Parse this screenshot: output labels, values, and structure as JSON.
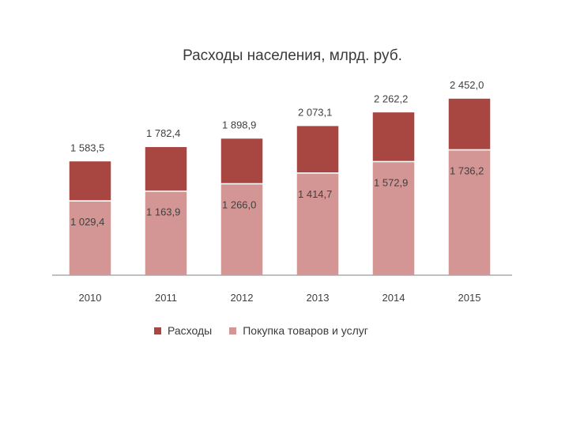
{
  "chart_data": {
    "type": "bar",
    "stacked": true,
    "title": "Расходы населения, млрд. руб.",
    "categories": [
      "2010",
      "2011",
      "2012",
      "2013",
      "2014",
      "2015"
    ],
    "series": [
      {
        "name": "Покупка товаров и услуг",
        "color": "#d49694",
        "values": [
          1029.4,
          1163.9,
          1266.0,
          1414.7,
          1572.9,
          1736.2
        ],
        "labels": [
          "1 029,4",
          "1 163,9",
          "1 266,0",
          "1 414,7",
          "1 572,9",
          "1 736,2"
        ]
      },
      {
        "name": "Расходы",
        "color": "#a84641",
        "totals": [
          1583.5,
          1782.4,
          1898.9,
          2073.1,
          2262.2,
          2452.0
        ],
        "labels": [
          "1 583,5",
          "1 782,4",
          "1 898,9",
          "2 073,1",
          "2 262,2",
          "2 452,0"
        ]
      }
    ],
    "ylim": [
      0,
      3000
    ],
    "legend_position": "bottom",
    "grid": false
  }
}
